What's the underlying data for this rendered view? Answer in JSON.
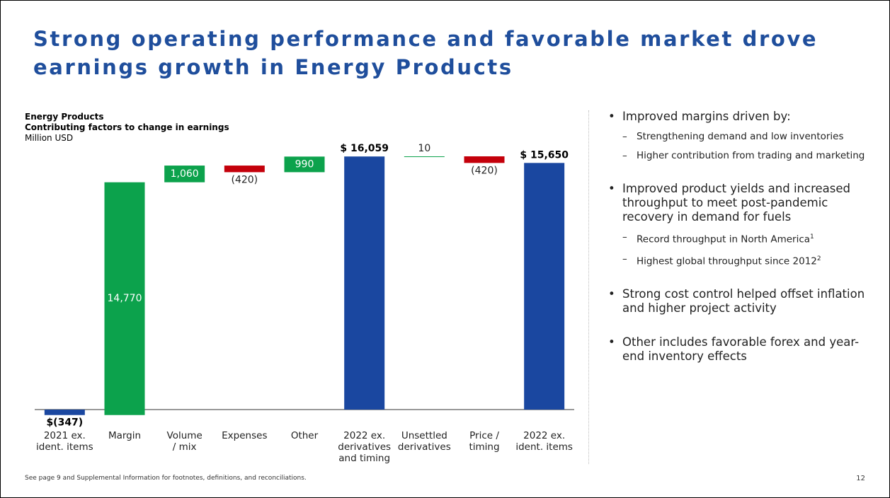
{
  "slide_title": "Strong operating performance and favorable market drove earnings growth in Energy Products",
  "chart_data": {
    "type": "waterfall",
    "title": "Energy Products",
    "subtitle": "Contributing factors to change in earnings",
    "unit_label": "Million USD",
    "categories": [
      "2021 ex.\nident. items",
      "Margin",
      "Volume\n/ mix",
      "Expenses",
      "Other",
      "2022 ex.\nderivatives\nand timing",
      "Unsettled\nderivatives",
      "Price /\ntiming",
      "2022 ex.\nident. items"
    ],
    "measure": [
      "total",
      "relative",
      "relative",
      "relative",
      "relative",
      "total",
      "relative",
      "relative",
      "total"
    ],
    "values": [
      -347,
      14770,
      1060,
      -420,
      990,
      16059,
      10,
      -420,
      15650
    ],
    "value_labels": [
      "$(347)",
      "14,770",
      "1,060",
      "(420)",
      "990",
      "$ 16,059",
      "10",
      "(420)",
      "$ 15,650"
    ],
    "colors": {
      "total": "#1a47a0",
      "increase": "#0ca24c",
      "decrease": "#c4000b"
    }
  },
  "bullets": [
    {
      "text": "Improved margins driven by:",
      "sub": [
        {
          "text": "Strengthening demand and low inventories"
        },
        {
          "text": "Higher contribution from trading and marketing"
        }
      ]
    },
    {
      "text": "Improved product yields and increased throughput to meet post-pandemic recovery in demand for fuels",
      "sub": [
        {
          "text": "Record throughput in North America",
          "note": "1"
        },
        {
          "text": "Highest global throughput since 2012",
          "note": "2"
        }
      ]
    },
    {
      "text": "Strong cost control helped offset inflation and higher project activity",
      "sub": []
    },
    {
      "text": "Other includes favorable forex and year-end inventory effects",
      "sub": []
    }
  ],
  "footer": "See page 9 and Supplemental Information for footnotes, definitions, and reconciliations.",
  "page_number": "12"
}
